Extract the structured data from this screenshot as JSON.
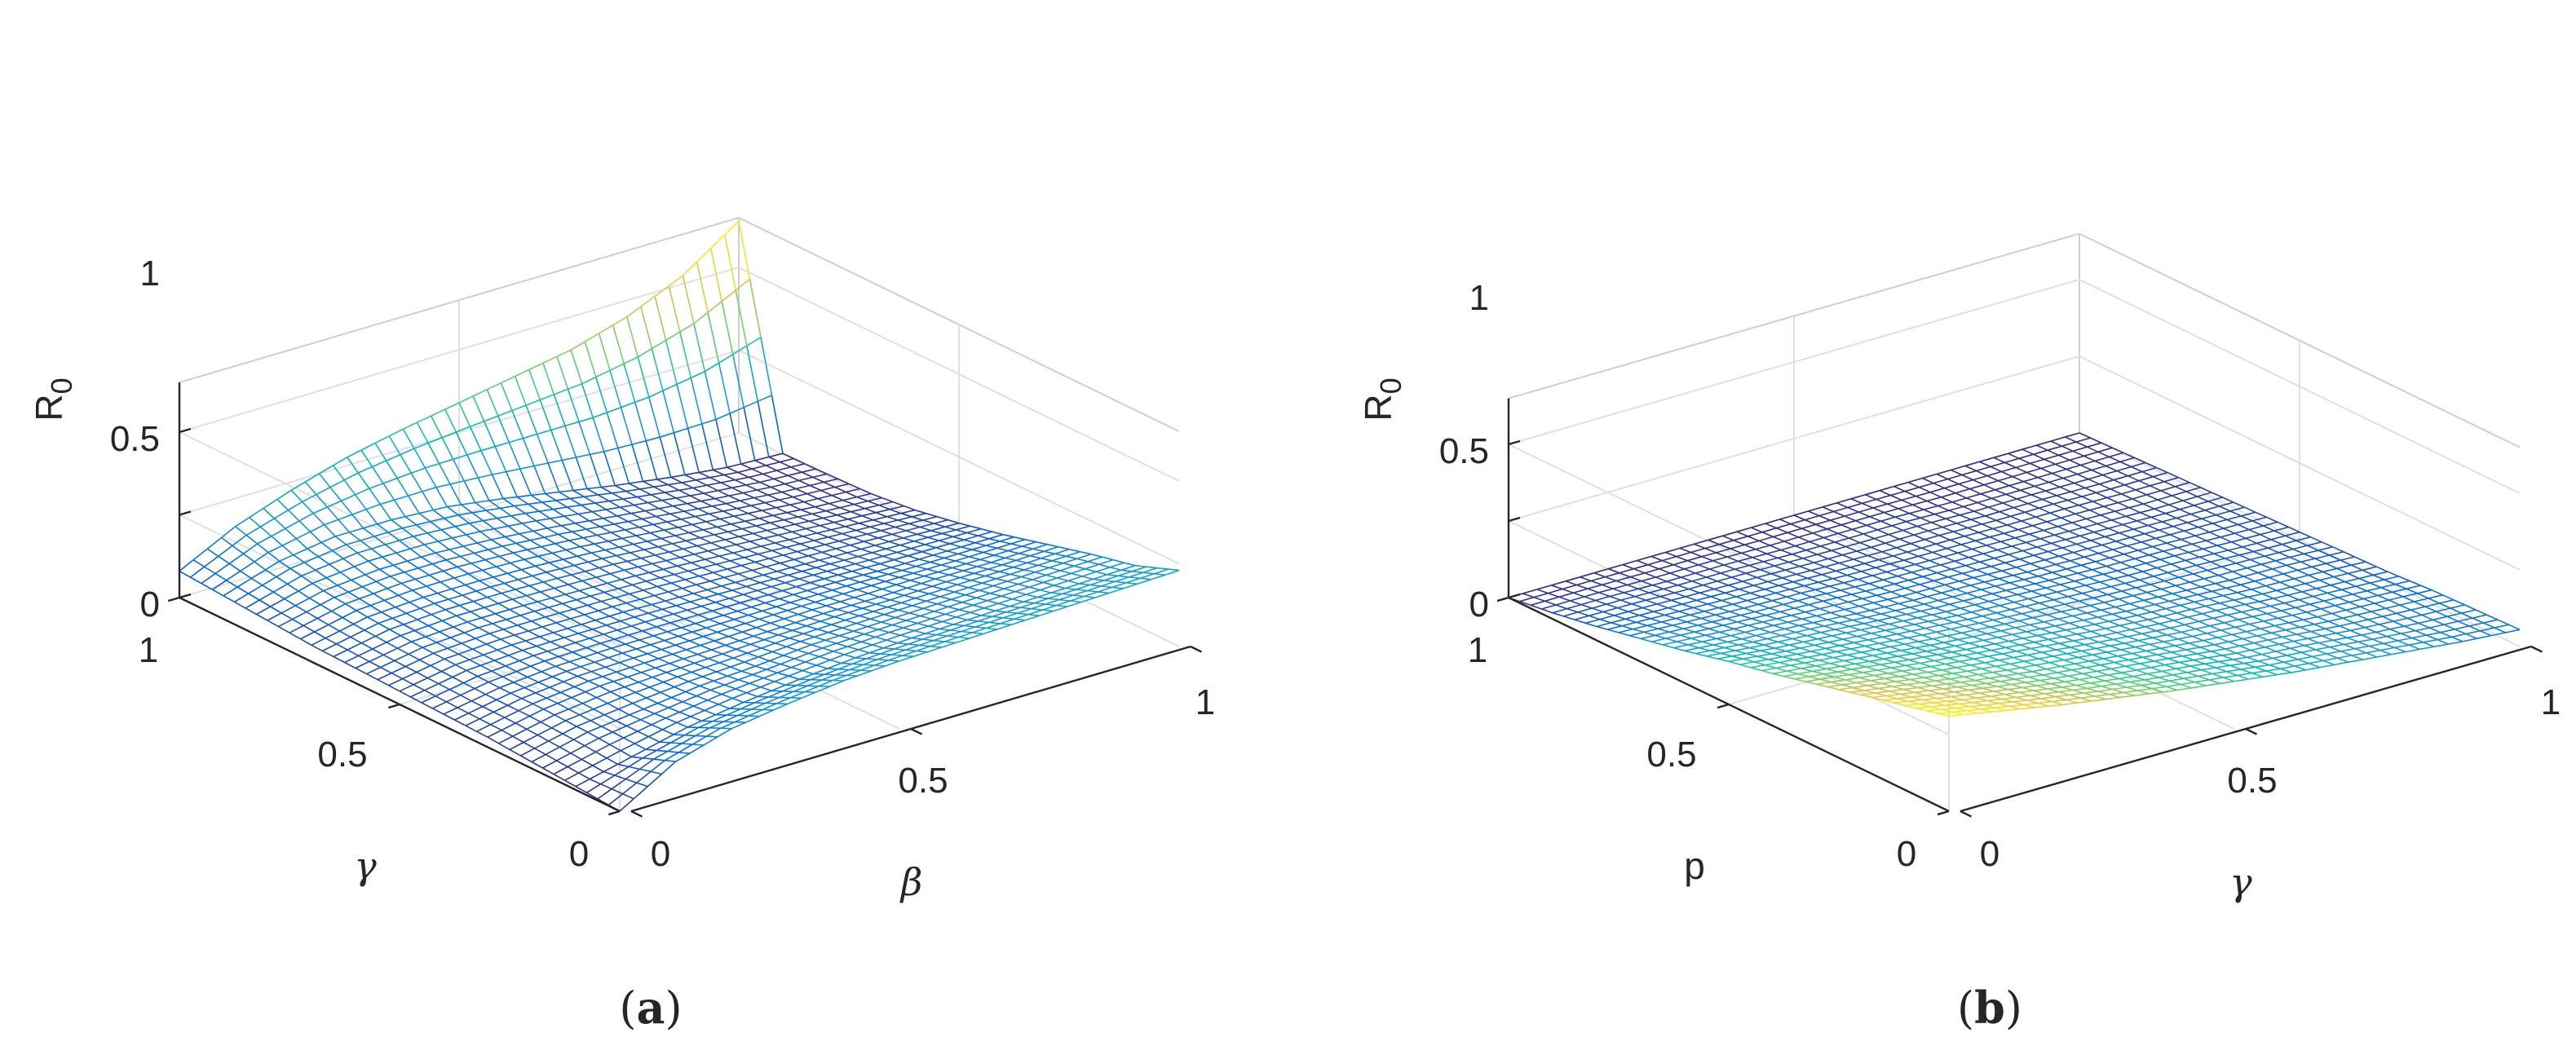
{
  "chart_data": [
    {
      "type": "surface",
      "panel_label": "a",
      "x_label": "β",
      "y_label": "γ",
      "z_label": "R",
      "z_label_sub": "0",
      "x_ticks": [
        "0",
        "0.5",
        "1"
      ],
      "y_ticks": [
        "0",
        "0.5",
        "1"
      ],
      "z_ticks": [
        "0",
        "0.5",
        "1"
      ],
      "xlim": [
        0,
        1
      ],
      "ylim": [
        0,
        1
      ],
      "zlim": [
        0,
        1.3
      ],
      "grid": true,
      "colormap": "parula",
      "grid_x": [
        0,
        0.1,
        0.2,
        0.3,
        0.4,
        0.5,
        0.6,
        0.7,
        0.8,
        0.9,
        1.0
      ],
      "grid_y": [
        0,
        0.1,
        0.2,
        0.3,
        0.4,
        0.5,
        0.6,
        0.7,
        0.8,
        0.9,
        1.0
      ],
      "values": [
        [
          0.0,
          0.2,
          0.3,
          0.35,
          0.39,
          0.41,
          0.42,
          0.43,
          0.44,
          0.45,
          0.46
        ],
        [
          0.02,
          0.1,
          0.18,
          0.23,
          0.27,
          0.3,
          0.32,
          0.33,
          0.34,
          0.35,
          0.36
        ],
        [
          0.04,
          0.12,
          0.16,
          0.2,
          0.22,
          0.25,
          0.26,
          0.27,
          0.28,
          0.29,
          0.3
        ],
        [
          0.06,
          0.13,
          0.17,
          0.18,
          0.19,
          0.2,
          0.21,
          0.21,
          0.22,
          0.22,
          0.23
        ],
        [
          0.07,
          0.13,
          0.16,
          0.17,
          0.17,
          0.17,
          0.17,
          0.17,
          0.16,
          0.16,
          0.16
        ],
        [
          0.08,
          0.14,
          0.16,
          0.16,
          0.16,
          0.15,
          0.14,
          0.13,
          0.12,
          0.11,
          0.1
        ],
        [
          0.09,
          0.15,
          0.17,
          0.17,
          0.16,
          0.15,
          0.13,
          0.11,
          0.09,
          0.07,
          0.05
        ],
        [
          0.1,
          0.17,
          0.19,
          0.19,
          0.18,
          0.16,
          0.13,
          0.1,
          0.07,
          0.04,
          0.02
        ],
        [
          0.12,
          0.2,
          0.23,
          0.23,
          0.21,
          0.18,
          0.14,
          0.1,
          0.06,
          0.03,
          0.01
        ],
        [
          0.14,
          0.25,
          0.3,
          0.3,
          0.28,
          0.23,
          0.17,
          0.11,
          0.06,
          0.02,
          0.005
        ],
        [
          0.16,
          0.33,
          0.45,
          0.55,
          0.62,
          0.68,
          0.74,
          0.8,
          0.9,
          1.05,
          1.28
        ]
      ]
    },
    {
      "type": "surface",
      "panel_label": "b",
      "x_label": "γ",
      "y_label": "p",
      "z_label": "R",
      "z_label_sub": "0",
      "x_ticks": [
        "0",
        "0.5",
        "1"
      ],
      "y_ticks": [
        "0",
        "0.5",
        "1"
      ],
      "z_ticks": [
        "0",
        "0.5",
        "1"
      ],
      "xlim": [
        0,
        1
      ],
      "ylim": [
        0,
        1
      ],
      "zlim": [
        0,
        1.3
      ],
      "grid": true,
      "colormap": "parula",
      "grid_x": [
        0,
        0.1,
        0.2,
        0.3,
        0.4,
        0.5,
        0.6,
        0.7,
        0.8,
        0.9,
        1.0
      ],
      "grid_y": [
        0,
        0.1,
        0.2,
        0.3,
        0.4,
        0.5,
        0.6,
        0.7,
        0.8,
        0.9,
        1.0
      ],
      "values": [
        [
          0.62,
          0.55,
          0.48,
          0.42,
          0.36,
          0.31,
          0.26,
          0.22,
          0.18,
          0.14,
          0.11
        ],
        [
          0.55,
          0.48,
          0.42,
          0.36,
          0.31,
          0.27,
          0.22,
          0.19,
          0.15,
          0.12,
          0.1
        ],
        [
          0.48,
          0.42,
          0.36,
          0.31,
          0.27,
          0.23,
          0.19,
          0.16,
          0.13,
          0.11,
          0.09
        ],
        [
          0.41,
          0.36,
          0.31,
          0.27,
          0.23,
          0.19,
          0.16,
          0.14,
          0.11,
          0.09,
          0.07
        ],
        [
          0.34,
          0.3,
          0.26,
          0.22,
          0.19,
          0.16,
          0.13,
          0.11,
          0.09,
          0.08,
          0.06
        ],
        [
          0.28,
          0.24,
          0.21,
          0.18,
          0.15,
          0.13,
          0.11,
          0.09,
          0.08,
          0.06,
          0.05
        ],
        [
          0.21,
          0.18,
          0.16,
          0.13,
          0.11,
          0.1,
          0.08,
          0.07,
          0.06,
          0.05,
          0.04
        ],
        [
          0.15,
          0.13,
          0.11,
          0.1,
          0.08,
          0.07,
          0.06,
          0.05,
          0.04,
          0.03,
          0.03
        ],
        [
          0.09,
          0.08,
          0.07,
          0.06,
          0.05,
          0.04,
          0.04,
          0.03,
          0.03,
          0.02,
          0.02
        ],
        [
          0.04,
          0.04,
          0.03,
          0.03,
          0.02,
          0.02,
          0.02,
          0.01,
          0.01,
          0.01,
          0.01
        ],
        [
          0.0,
          0.0,
          0.0,
          0.0,
          0.0,
          0.0,
          0.0,
          0.0,
          0.0,
          0.0,
          0.0
        ]
      ]
    }
  ]
}
